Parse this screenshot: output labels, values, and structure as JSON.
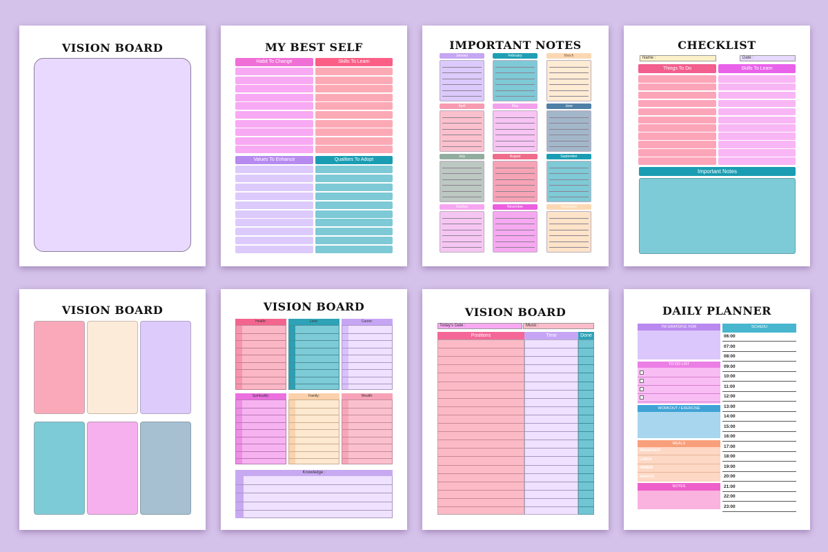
{
  "pages": {
    "vision1": {
      "title": "VISION BOARD"
    },
    "best_self": {
      "title": "MY BEST SELF",
      "sections": [
        "Habit To Change",
        "Skills To Learn",
        "Values To Enhance",
        "Qualities To Adopt"
      ]
    },
    "notes": {
      "title": "IMPORTANT NOTES",
      "months": [
        "January",
        "February",
        "March",
        "April",
        "May",
        "June",
        "July",
        "August",
        "September",
        "October",
        "November",
        "December"
      ]
    },
    "checklist": {
      "title": "CHECKLIST",
      "name_label": "Name :",
      "date_label": "Date :",
      "col1": "Things To Do",
      "col2": "Skills To Learn",
      "notes_label": "Important Notes"
    },
    "vision2": {
      "title": "VISION BOARD"
    },
    "vision3": {
      "title": "VISION BOARD",
      "sections": [
        "Health:",
        "Love:",
        "Career:",
        "Spirituality:",
        "Family:",
        "Wealth:"
      ],
      "knowledge": "Knowledge :"
    },
    "vision4": {
      "title": "VISION BOARD",
      "today_label": "Today's Date :",
      "music_label": "Music :",
      "col_positions": "Positions",
      "col_time": "Time",
      "col_done": "Done"
    },
    "planner": {
      "title": "DAILY PLANNER",
      "grateful": "I'M GRATEFUL FOR",
      "todo": "TO DO LIST",
      "workout": "WORKOUT / EXERCISE",
      "meals": "MEALS",
      "meal_items": [
        "BREAKFAST",
        "LUNCH",
        "DINNER",
        "SNACKS"
      ],
      "notes": "NOTES",
      "schedule": "SCHEDU",
      "times": [
        "06:00",
        "07:00",
        "08:00",
        "09:00",
        "10:00",
        "11:00",
        "12:00",
        "13:00",
        "14:00",
        "15:00",
        "16:00",
        "17:00",
        "18:00",
        "19:00",
        "20:00",
        "21:00",
        "22:00",
        "23:00"
      ]
    }
  }
}
